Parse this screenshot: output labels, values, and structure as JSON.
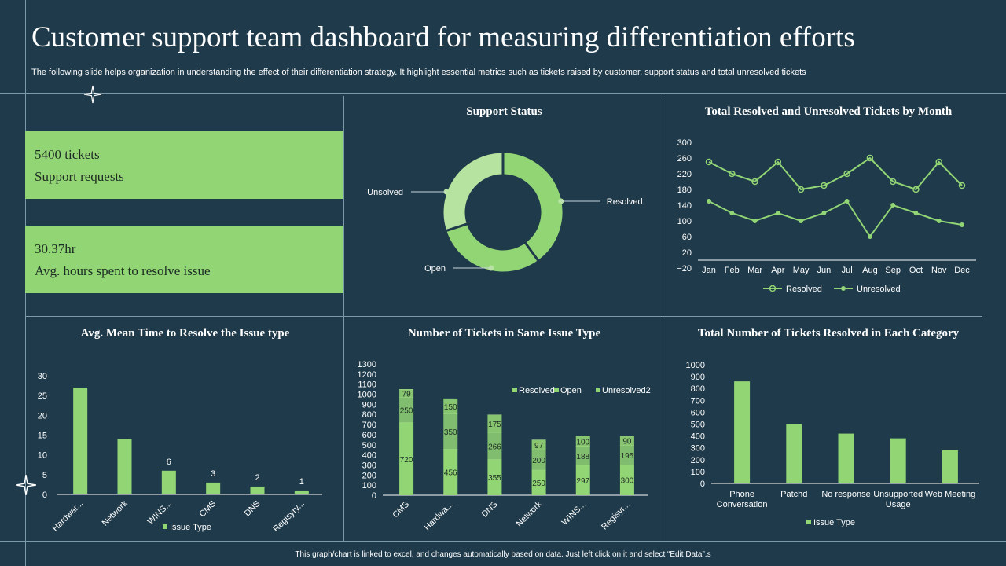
{
  "header": {
    "title": "Customer support team dashboard for measuring differentiation efforts",
    "subtitle": "The following slide helps organization in understanding the effect of their differentiation strategy. It highlight essential metrics such as tickets raised by customer, support status and total unresolved tickets"
  },
  "kpis": [
    {
      "value": "5400 tickets",
      "label": "Support requests"
    },
    {
      "value": "30.37hr",
      "label": "Avg. hours spent to resolve issue"
    }
  ],
  "footer": "This graph/chart is linked to excel, and changes automatically based on data.  Just left click on it and select “Edit Data”.s",
  "colors": {
    "background": "#1f3a4a",
    "accent": "#92d575",
    "light": "#b6e39f",
    "line": "#7a9aab"
  },
  "chart_data": [
    {
      "type": "pie",
      "title": "Support  Status",
      "categories": [
        "Resolved",
        "Open",
        "Unsolved"
      ],
      "values": [
        40,
        30,
        30
      ],
      "colors": [
        "#92d575",
        "#92d575",
        "#b6e39f"
      ],
      "donut": true
    },
    {
      "type": "line",
      "title": "Total Resolved and Unresolved Tickets by Month",
      "categories": [
        "Jan",
        "Feb",
        "Mar",
        "Apr",
        "May",
        "Jun",
        "Jul",
        "Aug",
        "Sep",
        "Oct",
        "Nov",
        "Dec"
      ],
      "series": [
        {
          "name": "Resolved",
          "values": [
            250,
            220,
            200,
            250,
            180,
            190,
            220,
            260,
            200,
            180,
            250,
            190
          ]
        },
        {
          "name": "Unresolved",
          "values": [
            150,
            120,
            100,
            120,
            100,
            120,
            150,
            60,
            140,
            120,
            100,
            90
          ]
        }
      ],
      "ylim": [
        -20,
        300
      ],
      "yticks": [
        -20,
        20,
        60,
        100,
        140,
        180,
        220,
        260,
        300
      ],
      "legend": "bottom"
    },
    {
      "type": "bar",
      "title": "Avg. Mean Time  to Resolve the Issue type",
      "categories": [
        "Hardwar...",
        "Network",
        "WINS...",
        "CMS",
        "DNS",
        "Regisyry..."
      ],
      "values": [
        27,
        14,
        6,
        3,
        2,
        1
      ],
      "data_labels": [
        "",
        "",
        "6",
        "3",
        "2",
        "1"
      ],
      "series_name": "Issue Type",
      "ylim": [
        0,
        30
      ],
      "yticks": [
        0,
        5,
        10,
        15,
        20,
        25,
        30
      ],
      "legend": "bottom"
    },
    {
      "type": "bar",
      "stacked": true,
      "title": "Number  of Tickets in Same Issue Type",
      "categories": [
        "CMS",
        "Hardwa...",
        "DNS",
        "Network",
        "WINS...",
        "Regisyr..."
      ],
      "series": [
        {
          "name": "Resolved",
          "values": [
            720,
            456,
            355,
            250,
            297,
            300
          ]
        },
        {
          "name": "Open",
          "values": [
            250,
            350,
            266,
            200,
            188,
            195
          ]
        },
        {
          "name": "Unresolved2",
          "values": [
            79,
            150,
            175,
            97,
            100,
            90
          ]
        }
      ],
      "ylim": [
        0,
        1300
      ],
      "yticks": [
        0,
        100,
        200,
        300,
        400,
        500,
        600,
        700,
        800,
        900,
        1000,
        1100,
        1200,
        1300
      ],
      "legend": "top-right"
    },
    {
      "type": "bar",
      "title": "Total Number  of Tickets Resolved in Each Category",
      "categories": [
        [
          "Phone",
          "Conversation"
        ],
        [
          "Patchd"
        ],
        [
          "No response"
        ],
        [
          "Unsupported",
          "Usage"
        ],
        [
          "Web Meeting"
        ]
      ],
      "values": [
        860,
        500,
        420,
        380,
        280
      ],
      "series_name": "Issue Type",
      "ylim": [
        0,
        1000
      ],
      "yticks": [
        0,
        100,
        200,
        300,
        400,
        500,
        600,
        700,
        800,
        900,
        1000
      ],
      "legend": "bottom"
    }
  ]
}
